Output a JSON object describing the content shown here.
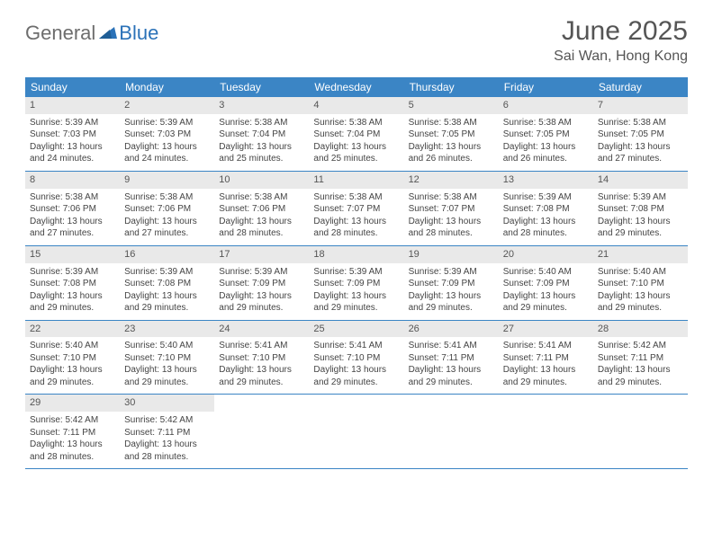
{
  "brand": {
    "part1": "General",
    "part2": "Blue"
  },
  "title": "June 2025",
  "location": "Sai Wan, Hong Kong",
  "colors": {
    "header_bg": "#3b85c5",
    "daynum_bg": "#e9e9e9",
    "text": "#444444",
    "brand_blue": "#2b72b8",
    "brand_gray": "#6d6d6d"
  },
  "daynames": [
    "Sunday",
    "Monday",
    "Tuesday",
    "Wednesday",
    "Thursday",
    "Friday",
    "Saturday"
  ],
  "weeks": [
    [
      {
        "n": "1",
        "sr": "Sunrise: 5:39 AM",
        "ss": "Sunset: 7:03 PM",
        "dl": "Daylight: 13 hours and 24 minutes."
      },
      {
        "n": "2",
        "sr": "Sunrise: 5:39 AM",
        "ss": "Sunset: 7:03 PM",
        "dl": "Daylight: 13 hours and 24 minutes."
      },
      {
        "n": "3",
        "sr": "Sunrise: 5:38 AM",
        "ss": "Sunset: 7:04 PM",
        "dl": "Daylight: 13 hours and 25 minutes."
      },
      {
        "n": "4",
        "sr": "Sunrise: 5:38 AM",
        "ss": "Sunset: 7:04 PM",
        "dl": "Daylight: 13 hours and 25 minutes."
      },
      {
        "n": "5",
        "sr": "Sunrise: 5:38 AM",
        "ss": "Sunset: 7:05 PM",
        "dl": "Daylight: 13 hours and 26 minutes."
      },
      {
        "n": "6",
        "sr": "Sunrise: 5:38 AM",
        "ss": "Sunset: 7:05 PM",
        "dl": "Daylight: 13 hours and 26 minutes."
      },
      {
        "n": "7",
        "sr": "Sunrise: 5:38 AM",
        "ss": "Sunset: 7:05 PM",
        "dl": "Daylight: 13 hours and 27 minutes."
      }
    ],
    [
      {
        "n": "8",
        "sr": "Sunrise: 5:38 AM",
        "ss": "Sunset: 7:06 PM",
        "dl": "Daylight: 13 hours and 27 minutes."
      },
      {
        "n": "9",
        "sr": "Sunrise: 5:38 AM",
        "ss": "Sunset: 7:06 PM",
        "dl": "Daylight: 13 hours and 27 minutes."
      },
      {
        "n": "10",
        "sr": "Sunrise: 5:38 AM",
        "ss": "Sunset: 7:06 PM",
        "dl": "Daylight: 13 hours and 28 minutes."
      },
      {
        "n": "11",
        "sr": "Sunrise: 5:38 AM",
        "ss": "Sunset: 7:07 PM",
        "dl": "Daylight: 13 hours and 28 minutes."
      },
      {
        "n": "12",
        "sr": "Sunrise: 5:38 AM",
        "ss": "Sunset: 7:07 PM",
        "dl": "Daylight: 13 hours and 28 minutes."
      },
      {
        "n": "13",
        "sr": "Sunrise: 5:39 AM",
        "ss": "Sunset: 7:08 PM",
        "dl": "Daylight: 13 hours and 28 minutes."
      },
      {
        "n": "14",
        "sr": "Sunrise: 5:39 AM",
        "ss": "Sunset: 7:08 PM",
        "dl": "Daylight: 13 hours and 29 minutes."
      }
    ],
    [
      {
        "n": "15",
        "sr": "Sunrise: 5:39 AM",
        "ss": "Sunset: 7:08 PM",
        "dl": "Daylight: 13 hours and 29 minutes."
      },
      {
        "n": "16",
        "sr": "Sunrise: 5:39 AM",
        "ss": "Sunset: 7:08 PM",
        "dl": "Daylight: 13 hours and 29 minutes."
      },
      {
        "n": "17",
        "sr": "Sunrise: 5:39 AM",
        "ss": "Sunset: 7:09 PM",
        "dl": "Daylight: 13 hours and 29 minutes."
      },
      {
        "n": "18",
        "sr": "Sunrise: 5:39 AM",
        "ss": "Sunset: 7:09 PM",
        "dl": "Daylight: 13 hours and 29 minutes."
      },
      {
        "n": "19",
        "sr": "Sunrise: 5:39 AM",
        "ss": "Sunset: 7:09 PM",
        "dl": "Daylight: 13 hours and 29 minutes."
      },
      {
        "n": "20",
        "sr": "Sunrise: 5:40 AM",
        "ss": "Sunset: 7:09 PM",
        "dl": "Daylight: 13 hours and 29 minutes."
      },
      {
        "n": "21",
        "sr": "Sunrise: 5:40 AM",
        "ss": "Sunset: 7:10 PM",
        "dl": "Daylight: 13 hours and 29 minutes."
      }
    ],
    [
      {
        "n": "22",
        "sr": "Sunrise: 5:40 AM",
        "ss": "Sunset: 7:10 PM",
        "dl": "Daylight: 13 hours and 29 minutes."
      },
      {
        "n": "23",
        "sr": "Sunrise: 5:40 AM",
        "ss": "Sunset: 7:10 PM",
        "dl": "Daylight: 13 hours and 29 minutes."
      },
      {
        "n": "24",
        "sr": "Sunrise: 5:41 AM",
        "ss": "Sunset: 7:10 PM",
        "dl": "Daylight: 13 hours and 29 minutes."
      },
      {
        "n": "25",
        "sr": "Sunrise: 5:41 AM",
        "ss": "Sunset: 7:10 PM",
        "dl": "Daylight: 13 hours and 29 minutes."
      },
      {
        "n": "26",
        "sr": "Sunrise: 5:41 AM",
        "ss": "Sunset: 7:11 PM",
        "dl": "Daylight: 13 hours and 29 minutes."
      },
      {
        "n": "27",
        "sr": "Sunrise: 5:41 AM",
        "ss": "Sunset: 7:11 PM",
        "dl": "Daylight: 13 hours and 29 minutes."
      },
      {
        "n": "28",
        "sr": "Sunrise: 5:42 AM",
        "ss": "Sunset: 7:11 PM",
        "dl": "Daylight: 13 hours and 29 minutes."
      }
    ],
    [
      {
        "n": "29",
        "sr": "Sunrise: 5:42 AM",
        "ss": "Sunset: 7:11 PM",
        "dl": "Daylight: 13 hours and 28 minutes."
      },
      {
        "n": "30",
        "sr": "Sunrise: 5:42 AM",
        "ss": "Sunset: 7:11 PM",
        "dl": "Daylight: 13 hours and 28 minutes."
      },
      null,
      null,
      null,
      null,
      null
    ]
  ]
}
